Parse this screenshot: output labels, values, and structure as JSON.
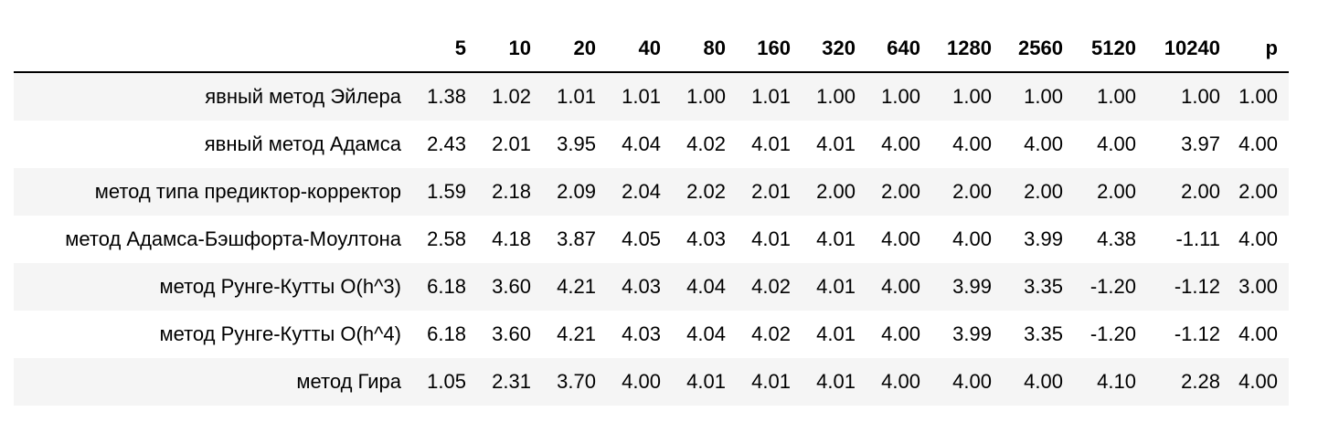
{
  "table": {
    "columns": [
      "",
      "5",
      "10",
      "20",
      "40",
      "80",
      "160",
      "320",
      "640",
      "1280",
      "2560",
      "5120",
      "10240",
      "p"
    ],
    "rows": [
      {
        "label": "явный метод Эйлера",
        "values": [
          "1.38",
          "1.02",
          "1.01",
          "1.01",
          "1.00",
          "1.01",
          "1.00",
          "1.00",
          "1.00",
          "1.00",
          "1.00",
          "1.00",
          "1.00"
        ]
      },
      {
        "label": "явный метод Адамса",
        "values": [
          "2.43",
          "2.01",
          "3.95",
          "4.04",
          "4.02",
          "4.01",
          "4.01",
          "4.00",
          "4.00",
          "4.00",
          "4.00",
          "3.97",
          "4.00"
        ]
      },
      {
        "label": "метод типа предиктор-корректор",
        "values": [
          "1.59",
          "2.18",
          "2.09",
          "2.04",
          "2.02",
          "2.01",
          "2.00",
          "2.00",
          "2.00",
          "2.00",
          "2.00",
          "2.00",
          "2.00"
        ]
      },
      {
        "label": "метод Адамса-Бэшфорта-Моултона",
        "values": [
          "2.58",
          "4.18",
          "3.87",
          "4.05",
          "4.03",
          "4.01",
          "4.01",
          "4.00",
          "4.00",
          "3.99",
          "4.38",
          "-1.11",
          "4.00"
        ]
      },
      {
        "label": "метод Рунге-Кутты O(h^3)",
        "values": [
          "6.18",
          "3.60",
          "4.21",
          "4.03",
          "4.04",
          "4.02",
          "4.01",
          "4.00",
          "3.99",
          "3.35",
          "-1.20",
          "-1.12",
          "3.00"
        ]
      },
      {
        "label": "метод Рунге-Кутты O(h^4)",
        "values": [
          "6.18",
          "3.60",
          "4.21",
          "4.03",
          "4.04",
          "4.02",
          "4.01",
          "4.00",
          "3.99",
          "3.35",
          "-1.20",
          "-1.12",
          "4.00"
        ]
      },
      {
        "label": "метод Гира",
        "values": [
          "1.05",
          "2.31",
          "3.70",
          "4.00",
          "4.01",
          "4.01",
          "4.01",
          "4.00",
          "4.00",
          "4.00",
          "4.10",
          "2.28",
          "4.00"
        ]
      }
    ]
  },
  "colors": {
    "stripe": "#f5f5f5",
    "header_rule": "#000000",
    "text": "#000000"
  }
}
